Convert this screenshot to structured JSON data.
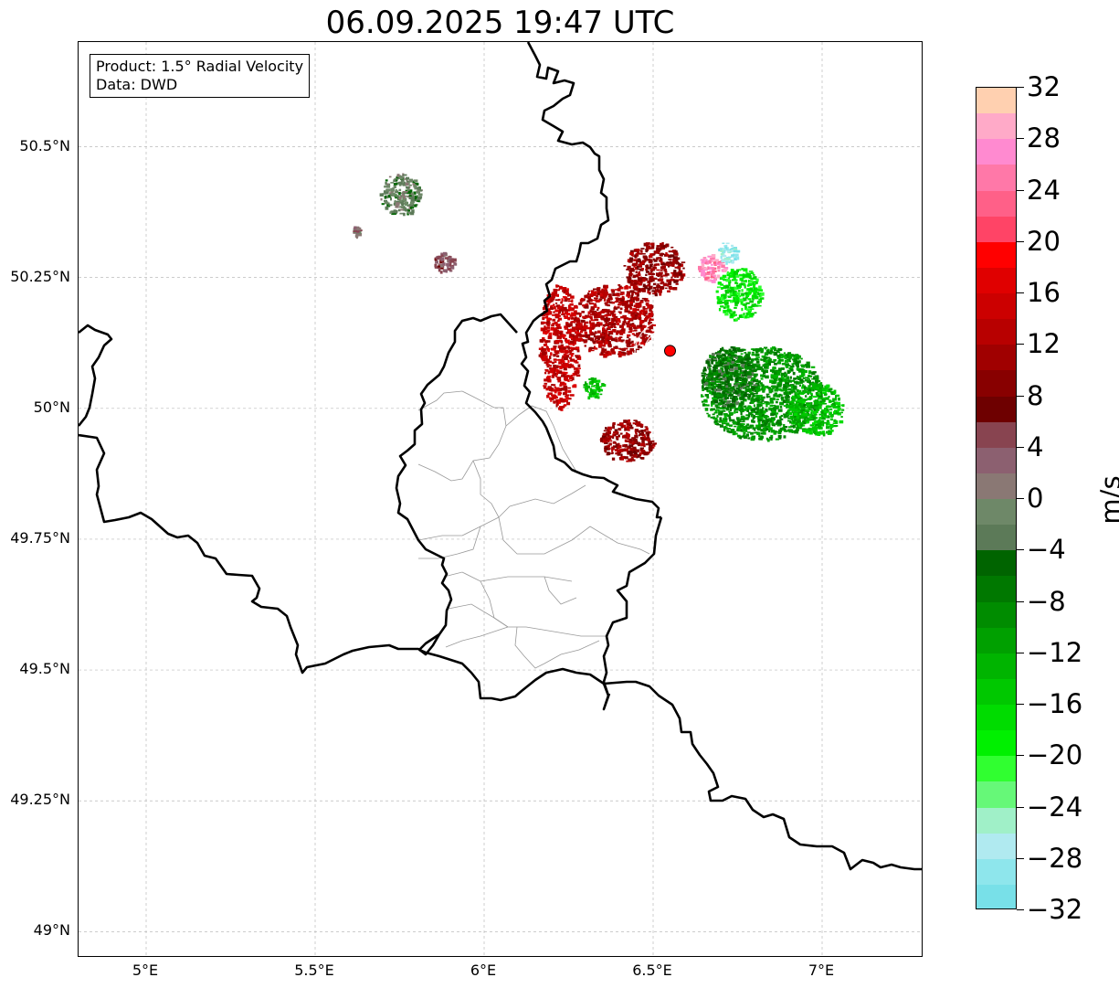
{
  "title": "06.09.2025 19:47 UTC",
  "info": {
    "product": "Product: 1.5° Radial Velocity",
    "source": "Data: DWD"
  },
  "axes": {
    "lat_labels": [
      "50.5°N",
      "50.25°N",
      "50°N",
      "49.75°N",
      "49.5°N",
      "49.25°N",
      "49°N"
    ],
    "lon_labels": [
      "5°E",
      "5.5°E",
      "6°E",
      "6.5°E",
      "7°E"
    ],
    "extent": {
      "lon_min": 4.8,
      "lon_max": 7.3,
      "lat_min": 48.95,
      "lat_max": 50.7
    },
    "grid": true
  },
  "radar_site": {
    "lon": 6.55,
    "lat": 50.11,
    "color": "#ff0000"
  },
  "colorbar": {
    "unit": "m/s",
    "vmin": -32,
    "vmax": 32,
    "tick_labels": [
      "32",
      "28",
      "24",
      "20",
      "16",
      "12",
      "8",
      "4",
      "0",
      "−4",
      "−8",
      "−12",
      "−16",
      "−20",
      "−24",
      "−28",
      "−32"
    ],
    "colors_top_to_bottom": [
      "#ffd0b0",
      "#ffaac8",
      "#ff8ad0",
      "#ff78a8",
      "#ff6088",
      "#ff4466",
      "#ff0000",
      "#e00000",
      "#cc0000",
      "#b80000",
      "#a00000",
      "#880000",
      "#6e0000",
      "#884450",
      "#8c6070",
      "#8a7874",
      "#6e8868",
      "#5c7a58",
      "#006400",
      "#007800",
      "#008c00",
      "#00a000",
      "#00b400",
      "#00c800",
      "#00dc00",
      "#00f000",
      "#30ff30",
      "#66f878",
      "#a0f0c8",
      "#b0eaf0",
      "#8ee6ec",
      "#78e0e8"
    ]
  },
  "velocity_regions": [
    {
      "name": "outbound-core-west",
      "lon": 6.38,
      "lat": 50.17,
      "rx": 0.12,
      "ry": 0.07,
      "value": 12
    },
    {
      "name": "outbound-north",
      "lon": 6.5,
      "lat": 50.27,
      "rx": 0.09,
      "ry": 0.05,
      "value": 10
    },
    {
      "name": "outbound-south",
      "lon": 6.42,
      "lat": 49.94,
      "rx": 0.08,
      "ry": 0.04,
      "value": 10
    },
    {
      "name": "outbound-westedge",
      "lon": 6.22,
      "lat": 50.12,
      "rx": 0.06,
      "ry": 0.12,
      "value": 14
    },
    {
      "name": "inbound-east",
      "lon": 6.82,
      "lat": 50.03,
      "rx": 0.18,
      "ry": 0.09,
      "value": -10
    },
    {
      "name": "inbound-core",
      "lon": 6.72,
      "lat": 50.06,
      "rx": 0.08,
      "ry": 0.06,
      "value": -6
    },
    {
      "name": "inbound-northeast",
      "lon": 6.75,
      "lat": 50.22,
      "rx": 0.07,
      "ry": 0.05,
      "value": -18
    },
    {
      "name": "inbound-far-east",
      "lon": 6.98,
      "lat": 50.0,
      "rx": 0.08,
      "ry": 0.05,
      "value": -14
    },
    {
      "name": "aliased-north",
      "lon": 6.67,
      "lat": 50.27,
      "rx": 0.04,
      "ry": 0.025,
      "value": 26
    },
    {
      "name": "cyan-north",
      "lon": 6.72,
      "lat": 50.3,
      "rx": 0.03,
      "ry": 0.02,
      "value": -28
    },
    {
      "name": "inbound-west-patch",
      "lon": 6.32,
      "lat": 50.04,
      "rx": 0.03,
      "ry": 0.02,
      "value": -14
    },
    {
      "name": "clutter-nw-a",
      "lon": 5.75,
      "lat": 50.41,
      "rx": 0.06,
      "ry": 0.04,
      "value": -2
    },
    {
      "name": "clutter-nw-b",
      "lon": 5.88,
      "lat": 50.28,
      "rx": 0.03,
      "ry": 0.02,
      "value": 4
    },
    {
      "name": "clutter-nw-c",
      "lon": 5.62,
      "lat": 50.34,
      "rx": 0.01,
      "ry": 0.01,
      "value": 2
    }
  ]
}
